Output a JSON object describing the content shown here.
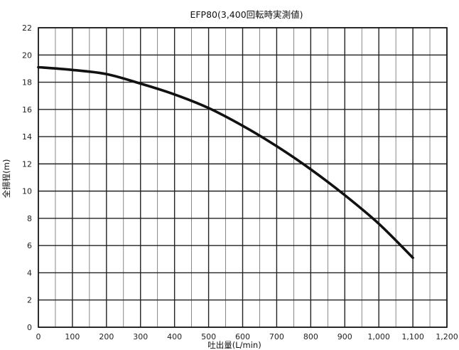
{
  "chart_data": {
    "type": "line",
    "title": "EFP80(3,400回転時実測値)",
    "xlabel": "吐出量(L/min)",
    "ylabel": "全揚程(m)",
    "xlim": [
      0,
      1200
    ],
    "ylim": [
      0,
      22
    ],
    "x_ticks": [
      0,
      100,
      200,
      300,
      400,
      500,
      600,
      700,
      800,
      900,
      1000,
      1100,
      1200
    ],
    "x_tick_labels": [
      "0",
      "100",
      "200",
      "300",
      "400",
      "500",
      "600",
      "700",
      "800",
      "900",
      "1,000",
      "1,100",
      "1,200"
    ],
    "y_ticks": [
      0,
      2,
      4,
      6,
      8,
      10,
      12,
      14,
      16,
      18,
      20,
      22
    ],
    "y_tick_labels": [
      "0",
      "2",
      "4",
      "6",
      "8",
      "10",
      "12",
      "14",
      "16",
      "18",
      "20",
      "22"
    ],
    "grid": true,
    "legend": "none",
    "series": [
      {
        "color": "#111111",
        "x": [
          0,
          100,
          200,
          300,
          400,
          500,
          600,
          700,
          800,
          900,
          1000,
          1100
        ],
        "y": [
          19.1,
          18.9,
          18.6,
          17.9,
          17.1,
          16.1,
          14.8,
          13.3,
          11.6,
          9.7,
          7.6,
          5.1
        ]
      }
    ]
  }
}
